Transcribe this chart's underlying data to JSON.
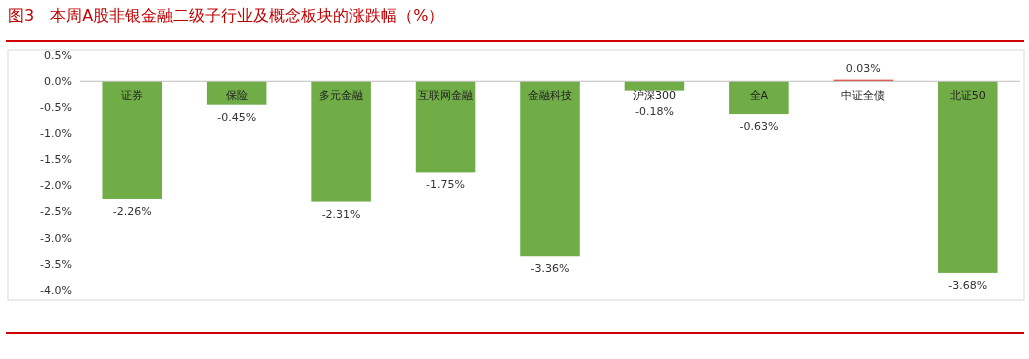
{
  "chart_data": {
    "type": "bar",
    "title": "图3　本周A股非银金融二级子行业及概念板块的涨跌幅（%）",
    "categories": [
      "证券",
      "保险",
      "多元金融",
      "互联网金融",
      "金融科技",
      "沪深300",
      "全A",
      "中证全债",
      "北证50"
    ],
    "values": [
      -2.26,
      -0.45,
      -2.31,
      -1.75,
      -3.36,
      -0.18,
      -0.63,
      0.03,
      -3.68
    ],
    "colors": [
      "#70ad47",
      "#70ad47",
      "#70ad47",
      "#70ad47",
      "#70ad47",
      "#70ad47",
      "#70ad47",
      "#e8403a",
      "#70ad47"
    ],
    "value_labels": [
      "-2.26%",
      "-0.45%",
      "-2.31%",
      "-1.75%",
      "-3.36%",
      "-0.18%",
      "-0.63%",
      "0.03%",
      "-3.68%"
    ],
    "ylim": [
      -4.2,
      0.6
    ],
    "yticks": [
      {
        "value": 0.5,
        "label": "0.5%"
      },
      {
        "value": 0,
        "label": "0.0%"
      },
      {
        "value": -0.5,
        "label": "-0.5%"
      },
      {
        "value": -1,
        "label": "-1.0%"
      },
      {
        "value": -1.5,
        "label": "-1.5%"
      },
      {
        "value": -2,
        "label": "-2.0%"
      },
      {
        "value": -2.5,
        "label": "-2.5%"
      },
      {
        "value": -3,
        "label": "-3.0%"
      },
      {
        "value": -3.5,
        "label": "-3.5%"
      },
      {
        "value": -4,
        "label": "-4.0%"
      }
    ],
    "grid": false
  }
}
